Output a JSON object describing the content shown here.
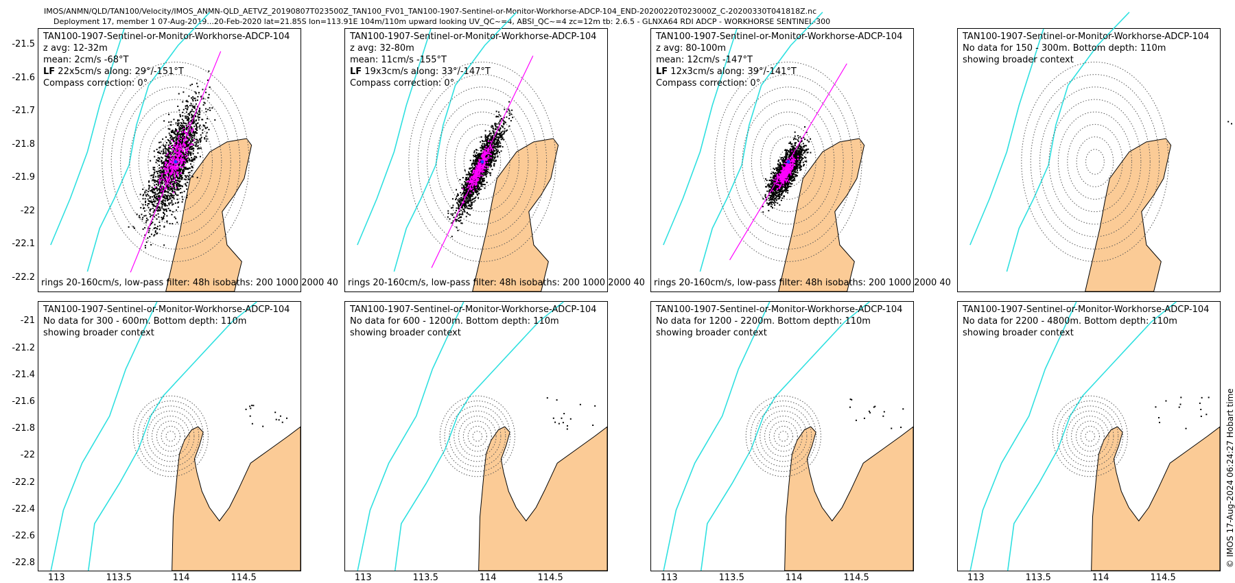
{
  "header": {
    "line1": "IMOS/ANMN/QLD/TAN100/Velocity/IMOS_ANMN-QLD_AETVZ_20190807T023500Z_TAN100_FV01_TAN100-1907-Sentinel-or-Monitor-Workhorse-ADCP-104_END-20200220T023000Z_C-20200330T041818Z.nc",
    "line2": "Deployment 17, member 1 07-Aug-2019...20-Feb-2020 lat=21.85S lon=113.91E 104m/110m upward looking UV_QC~=4, ABSI_QC~=4 zc=12m tb: 2.6.5 - GLNXA64 RDI ADCP - WORKHORSE SENTINEL-300"
  },
  "credit": "© IMOS 17-Aug-2024 06:24:27 Hobart time",
  "colors": {
    "land": "#fbcb96",
    "isobath": "#2ee0e0",
    "scatter": "#000000",
    "lowpass": "#ff00ff",
    "ring": "#555555"
  },
  "chart_data": [
    {
      "type": "scatter",
      "instrument": "TAN100-1907-Sentinel-or-Monitor-Workhorse-ADCP-104",
      "zavg": "z avg: 12-32m",
      "mean": "mean: 2cm/s -68°T",
      "lf_label": "LF",
      "lf": " 22x5cm/s along: 29°/-151°T",
      "compass": "Compass correction: 0°",
      "footer": "rings 20-160cm/s, low-pass filter: 48h isobaths: 200 1000  2000 40",
      "has_data": true,
      "spread_major": 0.26,
      "spread_minor": 0.085,
      "angle_deg": 29,
      "mean_dx": 0.0,
      "mean_dy": 0.0,
      "yticks": [
        "-21.5",
        "-21.6",
        "-21.7",
        "-21.8",
        "-21.9",
        "-22",
        "-22.1",
        "-22.2"
      ],
      "ylim": [
        -22.24,
        -21.45
      ],
      "xlim": [
        113.35,
        114.42
      ]
    },
    {
      "type": "scatter",
      "instrument": "TAN100-1907-Sentinel-or-Monitor-Workhorse-ADCP-104",
      "zavg": "z avg: 32-80m",
      "mean": "mean: 11cm/s -155°T",
      "lf_label": "LF",
      "lf": " 19x3cm/s along: 33°/-147°T",
      "compass": "Compass correction: 0°",
      "footer": "rings 20-160cm/s, low-pass filter: 48h isobaths: 200 1000  2000 40",
      "has_data": true,
      "spread_major": 0.2,
      "spread_minor": 0.045,
      "angle_deg": 33,
      "mean_dx": -0.01,
      "mean_dy": -0.02,
      "yticks": [],
      "ylim": [
        -22.24,
        -21.45
      ],
      "xlim": [
        113.35,
        114.42
      ]
    },
    {
      "type": "scatter",
      "instrument": "TAN100-1907-Sentinel-or-Monitor-Workhorse-ADCP-104",
      "zavg": "z avg: 80-100m",
      "mean": "mean: 12cm/s -147°T",
      "lf_label": "LF",
      "lf": " 12x3cm/s along: 39°/-141°T",
      "compass": "Compass correction: 0°",
      "footer": "rings 20-160cm/s, low-pass filter: 48h isobaths: 200 1000  2000 40",
      "has_data": true,
      "spread_major": 0.13,
      "spread_minor": 0.045,
      "angle_deg": 39,
      "mean_dx": -0.01,
      "mean_dy": -0.03,
      "yticks": [],
      "ylim": [
        -22.24,
        -21.45
      ],
      "xlim": [
        113.35,
        114.42
      ]
    },
    {
      "type": "map",
      "instrument": "TAN100-1907-Sentinel-or-Monitor-Workhorse-ADCP-104",
      "l2": "No data for 150 - 300m. Bottom depth: 110m",
      "l3": "showing broader context",
      "has_data": false,
      "yticks": [],
      "ylim": [
        -22.24,
        -21.45
      ],
      "xlim": [
        113.35,
        114.42
      ]
    },
    {
      "type": "map",
      "instrument": "TAN100-1907-Sentinel-or-Monitor-Workhorse-ADCP-104",
      "l2": "No data for 300 - 600m. Bottom depth: 110m",
      "l3": "showing broader context",
      "has_data": false,
      "yticks": [
        "-21",
        "-21.2",
        "-21.4",
        "-21.6",
        "-21.8",
        "-22",
        "-22.2",
        "-22.4",
        "-22.6",
        "-22.8"
      ],
      "xticks": [
        "113",
        "113.5",
        "114",
        "114.5"
      ],
      "ylim": [
        -22.85,
        -20.85
      ],
      "xlim": [
        112.85,
        114.95
      ]
    },
    {
      "type": "map",
      "instrument": "TAN100-1907-Sentinel-or-Monitor-Workhorse-ADCP-104",
      "l2": "No data for 600 - 1200m. Bottom depth: 110m",
      "l3": "showing broader context",
      "has_data": false,
      "yticks": [],
      "xticks": [
        "113",
        "113.5",
        "114",
        "114.5"
      ],
      "ylim": [
        -22.85,
        -20.85
      ],
      "xlim": [
        112.85,
        114.95
      ]
    },
    {
      "type": "map",
      "instrument": "TAN100-1907-Sentinel-or-Monitor-Workhorse-ADCP-104",
      "l2": "No data for 1200 - 2200m. Bottom depth: 110m",
      "l3": "showing broader context",
      "has_data": false,
      "yticks": [],
      "xticks": [
        "113",
        "113.5",
        "114",
        "114.5"
      ],
      "ylim": [
        -22.85,
        -20.85
      ],
      "xlim": [
        112.85,
        114.95
      ]
    },
    {
      "type": "map",
      "instrument": "TAN100-1907-Sentinel-or-Monitor-Workhorse-ADCP-104",
      "l2": "No data for 2200 - 4800m. Bottom depth: 110m",
      "l3": "showing broader context",
      "has_data": false,
      "yticks": [],
      "xticks": [
        "113",
        "113.5",
        "114",
        "114.5"
      ],
      "ylim": [
        -22.85,
        -20.85
      ],
      "xlim": [
        112.85,
        114.95
      ]
    }
  ]
}
